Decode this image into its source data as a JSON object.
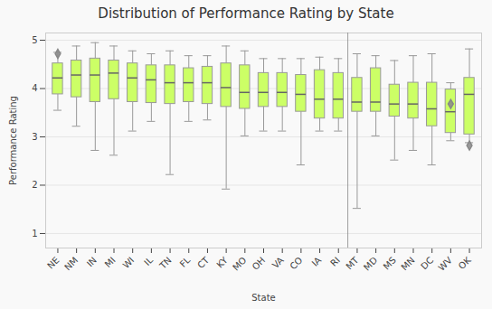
{
  "chart_data": {
    "type": "box",
    "title": "Distribution of Performance Rating by State",
    "xlabel": "State",
    "ylabel": "Performance Rating",
    "categories": [
      "NE",
      "NM",
      "IN",
      "MI",
      "WI",
      "IL",
      "TN",
      "FL",
      "CT",
      "KY",
      "MO",
      "OH",
      "VA",
      "CO",
      "IA",
      "RI",
      "MT",
      "MD",
      "MS",
      "MN",
      "DC",
      "WV",
      "OK"
    ],
    "q1": [
      3.88,
      3.82,
      3.72,
      3.78,
      3.72,
      3.7,
      3.68,
      3.72,
      3.68,
      3.62,
      3.58,
      3.62,
      3.62,
      3.52,
      3.38,
      3.38,
      3.52,
      3.52,
      3.42,
      3.38,
      3.22,
      3.08,
      3.05
    ],
    "median": [
      4.22,
      4.28,
      4.28,
      4.32,
      4.22,
      4.18,
      4.12,
      4.12,
      4.12,
      4.02,
      3.92,
      3.92,
      3.92,
      3.88,
      3.78,
      3.78,
      3.72,
      3.72,
      3.68,
      3.68,
      3.58,
      3.52,
      3.88
    ],
    "q3": [
      4.52,
      4.58,
      4.62,
      4.58,
      4.52,
      4.48,
      4.48,
      4.42,
      4.45,
      4.52,
      4.48,
      4.32,
      4.32,
      4.28,
      4.38,
      4.32,
      4.22,
      4.42,
      4.08,
      4.12,
      4.12,
      3.98,
      4.22
    ],
    "whisker_low": [
      3.55,
      3.22,
      2.72,
      2.62,
      3.12,
      3.32,
      2.22,
      3.32,
      3.35,
      1.92,
      3.02,
      3.12,
      3.12,
      2.42,
      3.12,
      3.12,
      1.52,
      3.02,
      2.52,
      2.72,
      2.42,
      2.92,
      2.88
    ],
    "whisker_high": [
      4.75,
      4.88,
      4.95,
      4.88,
      4.78,
      4.72,
      4.78,
      4.68,
      4.68,
      4.88,
      4.78,
      4.62,
      4.62,
      4.62,
      4.65,
      4.62,
      4.72,
      4.68,
      4.58,
      4.68,
      4.72,
      4.12,
      4.82
    ],
    "outliers": [
      [
        4.72
      ],
      [],
      [],
      [],
      [],
      [],
      [],
      [],
      [],
      [],
      [],
      [],
      [],
      [],
      [],
      [],
      [],
      [],
      [],
      [],
      [],
      [
        3.68
      ],
      [
        2.82
      ]
    ],
    "color": "#ccff66",
    "edge_color": "#999999",
    "median_color": "#666666",
    "whisker_color": "#999999",
    "flier_color": "#888888",
    "marker": "diamond",
    "background": "#f9f9f9",
    "separator_between": [
      "RI",
      "MT"
    ],
    "ylim": [
      0.7,
      5.15
    ],
    "yticks": [
      1,
      2,
      3,
      4,
      5
    ],
    "grid": true
  }
}
